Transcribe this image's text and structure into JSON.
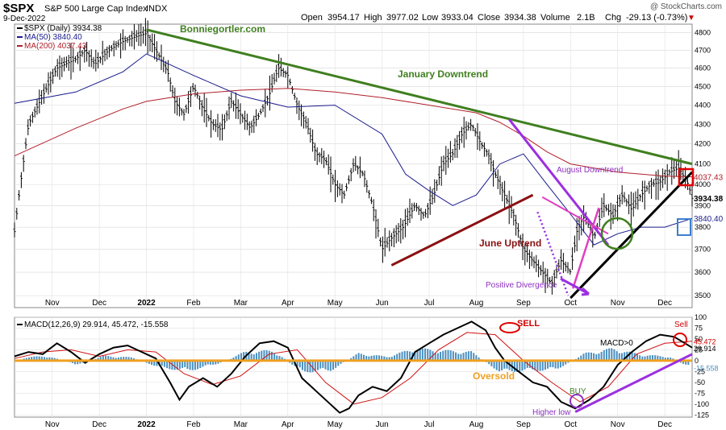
{
  "header": {
    "symbol": "$SPX",
    "name": "S&P 500 Large Cap Index",
    "exchange": "INDX",
    "date": "9-Dec-2022",
    "open_label": "Open",
    "open": "3954.17",
    "high_label": "High",
    "high": "3977.02",
    "low_label": "Low",
    "low": "3933.04",
    "close_label": "Close",
    "close": "3934.38",
    "volume_label": "Volume",
    "volume": "2.1B",
    "chg_label": "Chg",
    "chg": "-29.13 (-0.73%)",
    "chg_arrow": "▼",
    "watermark": "@ StockCharts.com"
  },
  "legend": {
    "price": "$SPX (Daily) 3934.38",
    "ma50": "MA(50) 3840.40",
    "ma200": "MA(200) 4037.43"
  },
  "annotations": {
    "site": "Bonniegortler.com",
    "jan_downtrend": "January Downtrend",
    "aug_downtrend": "August Downtrend",
    "june_uptrend": "June Uptrend",
    "positive_divergence": "Positive Divergence",
    "sell_top": "SELL",
    "sell_right": "Sell",
    "macd_gt0": "MACD>0",
    "oversold": "Oversold",
    "buy": "BUY",
    "higher_low": "Higher low"
  },
  "colors": {
    "price": "#000000",
    "ma50": "#1a1a8c",
    "ma200": "#b0202a",
    "jan_line": "#3f7f1f",
    "june_line": "#8b1010",
    "aug_line": "#9b30e0",
    "oversold": "#f0a020",
    "hist": "#4a8fc0",
    "black_trend": "#000000"
  },
  "chart_data": [
    {
      "type": "line",
      "title": "$SPX S&P 500 Large Cap Index INDX",
      "x_ticks": [
        "Nov",
        "Dec",
        "2022",
        "Feb",
        "Mar",
        "Apr",
        "May",
        "Jun",
        "Jul",
        "Aug",
        "Sep",
        "Oct",
        "Nov",
        "Dec"
      ],
      "x_tick_months": [
        1.5,
        2.5,
        3.5,
        4.5,
        5.5,
        6.5,
        7.5,
        8.5,
        9.5,
        10.5,
        11.5,
        12.5,
        13.5,
        14.5
      ],
      "x_range_months": [
        0.7,
        15.08
      ],
      "ylim": [
        3450,
        4850
      ],
      "y_ticks": [
        3500,
        3600,
        3700,
        3800,
        3900,
        4000,
        4100,
        4200,
        4300,
        4400,
        4500,
        4600,
        4700,
        4800
      ],
      "y_scale": "log",
      "series": [
        {
          "name": "$SPX (Daily)",
          "style": "ohlc",
          "x": [
            0.7,
            1.0,
            1.3,
            1.6,
            2.0,
            2.2,
            2.4,
            2.7,
            3.0,
            3.3,
            3.5,
            3.7,
            3.95,
            4.1,
            4.3,
            4.5,
            4.7,
            4.9,
            5.1,
            5.3,
            5.5,
            5.7,
            5.9,
            6.1,
            6.3,
            6.5,
            6.7,
            6.9,
            7.1,
            7.3,
            7.5,
            7.7,
            7.9,
            8.1,
            8.3,
            8.5,
            8.7,
            8.95,
            9.2,
            9.4,
            9.6,
            9.8,
            10.0,
            10.2,
            10.4,
            10.6,
            10.75,
            10.9,
            11.1,
            11.3,
            11.5,
            11.7,
            11.9,
            12.1,
            12.3,
            12.5,
            12.65,
            12.8,
            13.0,
            13.2,
            13.4,
            13.6,
            13.8,
            14.0,
            14.2,
            14.4,
            14.6,
            14.8,
            15.0,
            15.08
          ],
          "values": [
            3780,
            4300,
            4450,
            4600,
            4650,
            4700,
            4620,
            4700,
            4750,
            4780,
            4796,
            4700,
            4580,
            4420,
            4350,
            4500,
            4380,
            4300,
            4270,
            4420,
            4350,
            4280,
            4350,
            4450,
            4600,
            4560,
            4400,
            4300,
            4150,
            4120,
            4000,
            3950,
            4100,
            4050,
            3900,
            3700,
            3750,
            3800,
            3900,
            3850,
            3950,
            4100,
            4150,
            4250,
            4300,
            4200,
            4150,
            4050,
            3950,
            3850,
            3700,
            3650,
            3600,
            3550,
            3650,
            3600,
            3800,
            3850,
            3750,
            3900,
            3850,
            3950,
            3880,
            3950,
            4000,
            4010,
            4060,
            4080,
            4000,
            3934
          ]
        },
        {
          "name": "MA(50)",
          "x": [
            0.7,
            2.0,
            3.0,
            3.5,
            4.5,
            5.5,
            6.5,
            7.5,
            8.5,
            9.0,
            9.5,
            10.0,
            10.5,
            11.0,
            11.5,
            12.0,
            12.5,
            13.0,
            13.5,
            14.0,
            14.5,
            15.08
          ],
          "values": [
            4410,
            4470,
            4580,
            4680,
            4560,
            4450,
            4390,
            4400,
            4250,
            4050,
            3970,
            3900,
            3950,
            4100,
            4150,
            4000,
            3860,
            3720,
            3770,
            3800,
            3800,
            3840
          ]
        },
        {
          "name": "MA(200)",
          "x": [
            0.7,
            2.0,
            3.0,
            3.5,
            4.5,
            5.5,
            6.5,
            7.0,
            7.5,
            8.5,
            9.5,
            10.5,
            11.0,
            11.5,
            12.0,
            12.5,
            13.0,
            13.5,
            14.0,
            14.5,
            15.08
          ],
          "values": [
            4140,
            4280,
            4380,
            4420,
            4460,
            4480,
            4490,
            4480,
            4470,
            4440,
            4400,
            4360,
            4310,
            4240,
            4160,
            4100,
            4080,
            4060,
            4050,
            4040,
            4037
          ]
        }
      ],
      "right_labels": [
        "4037.43",
        "3934.38",
        "3840.40"
      ],
      "trendlines": [
        {
          "name": "January Downtrend",
          "from": [
            3.5,
            4818
          ],
          "to": [
            15.08,
            4100
          ]
        },
        {
          "name": "June Uptrend",
          "from": [
            8.7,
            3630
          ],
          "to": [
            11.7,
            3950
          ]
        },
        {
          "name": "August Downtrend",
          "from": [
            11.2,
            4325
          ],
          "to": [
            13.3,
            3720
          ]
        },
        {
          "name": "Positive Divergence",
          "from": [
            11.8,
            3870
          ],
          "to": [
            12.45,
            3500
          ]
        },
        {
          "name": "Rally trendline",
          "from": [
            12.5,
            3490
          ],
          "to": [
            15.08,
            4060
          ]
        }
      ]
    },
    {
      "type": "line",
      "title": "MACD(12,26,9) 29.914, 45.472, -15.558",
      "x_ticks": [
        "Nov",
        "Dec",
        "2022",
        "Feb",
        "Mar",
        "Apr",
        "May",
        "Jun",
        "Jul",
        "Aug",
        "Sep",
        "Oct",
        "Nov",
        "Dec"
      ],
      "x_tick_months": [
        1.5,
        2.5,
        3.5,
        4.5,
        5.5,
        6.5,
        7.5,
        8.5,
        9.5,
        10.5,
        11.5,
        12.5,
        13.5,
        14.5
      ],
      "ylim": [
        -130,
        100
      ],
      "y_ticks": [
        100,
        75,
        50,
        25,
        0,
        -25,
        -50,
        -75,
        -100,
        -125
      ],
      "series": [
        {
          "name": "MACD",
          "x": [
            0.7,
            1.0,
            1.3,
            1.6,
            1.9,
            2.2,
            2.5,
            2.8,
            3.1,
            3.4,
            3.7,
            4.0,
            4.2,
            4.4,
            4.7,
            5.0,
            5.3,
            5.6,
            5.9,
            6.2,
            6.5,
            6.8,
            7.1,
            7.4,
            7.6,
            7.8,
            8.0,
            8.3,
            8.6,
            8.9,
            9.2,
            9.5,
            9.8,
            10.1,
            10.4,
            10.7,
            10.9,
            11.1,
            11.4,
            11.7,
            12.0,
            12.3,
            12.6,
            12.9,
            13.2,
            13.5,
            13.8,
            14.1,
            14.4,
            14.7,
            15.08
          ],
          "values": [
            10,
            20,
            15,
            40,
            20,
            -5,
            15,
            30,
            35,
            20,
            5,
            -50,
            -90,
            -60,
            -40,
            -60,
            -30,
            10,
            40,
            45,
            30,
            -40,
            -70,
            -100,
            -120,
            -110,
            -80,
            -60,
            -70,
            -40,
            20,
            40,
            60,
            75,
            90,
            70,
            30,
            0,
            -25,
            -50,
            -60,
            -95,
            -110,
            -90,
            -60,
            -10,
            20,
            45,
            60,
            55,
            30
          ]
        },
        {
          "name": "Signal",
          "x": [
            0.7,
            1.3,
            1.9,
            2.5,
            3.1,
            3.7,
            4.3,
            4.9,
            5.5,
            6.1,
            6.7,
            7.3,
            7.9,
            8.5,
            9.1,
            9.7,
            10.3,
            10.9,
            11.5,
            12.1,
            12.7,
            13.3,
            13.9,
            14.5,
            15.08
          ],
          "values": [
            5,
            20,
            25,
            10,
            25,
            20,
            -30,
            -55,
            -35,
            15,
            25,
            -50,
            -100,
            -85,
            -40,
            25,
            65,
            60,
            0,
            -50,
            -95,
            -60,
            15,
            40,
            45
          ]
        },
        {
          "name": "Histogram",
          "style": "bar",
          "x": [
            0.9,
            1.4,
            2.0,
            2.6,
            3.2,
            3.8,
            4.4,
            5.0,
            5.6,
            6.2,
            6.8,
            7.4,
            8.0,
            8.6,
            9.2,
            9.8,
            10.4,
            11.0,
            11.6,
            12.2,
            12.8,
            13.4,
            14.0,
            14.6,
            15.0
          ],
          "values": [
            8,
            12,
            -10,
            12,
            8,
            -18,
            -25,
            -8,
            22,
            25,
            -28,
            -25,
            18,
            10,
            30,
            25,
            22,
            -28,
            -25,
            -22,
            18,
            30,
            15,
            10,
            -15
          ]
        }
      ],
      "right_labels": [
        "45.472",
        "29.914",
        "-15.558"
      ],
      "reference_line": {
        "name": "Oversold",
        "value": 0
      },
      "trendlines": [
        {
          "name": "Higher low",
          "from": [
            12.6,
            -118
          ],
          "to": [
            15.08,
            15
          ]
        }
      ]
    }
  ]
}
